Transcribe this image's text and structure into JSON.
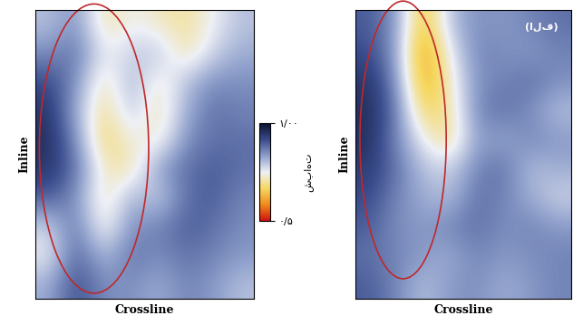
{
  "chart_data": [
    {
      "type": "heatmap",
      "x_label": "Crossline",
      "y_label": "Inline",
      "tick_labels": false,
      "cells": [
        [
          0.8,
          0.85,
          0.7,
          0.75,
          0.72,
          0.7,
          0.75,
          0.8
        ],
        [
          0.85,
          0.88,
          0.75,
          0.78,
          0.8,
          0.7,
          0.78,
          0.82
        ],
        [
          0.92,
          0.85,
          0.7,
          0.82,
          0.72,
          0.8,
          0.85,
          0.85
        ],
        [
          0.95,
          0.82,
          0.68,
          0.8,
          0.7,
          0.82,
          0.88,
          0.86
        ],
        [
          0.96,
          0.85,
          0.66,
          0.75,
          0.72,
          0.85,
          0.88,
          0.88
        ],
        [
          0.95,
          0.88,
          0.72,
          0.7,
          0.84,
          0.88,
          0.9,
          0.88
        ],
        [
          0.9,
          0.85,
          0.7,
          0.82,
          0.78,
          0.88,
          0.9,
          0.86
        ],
        [
          0.78,
          0.88,
          0.72,
          0.85,
          0.86,
          0.9,
          0.88,
          0.85
        ],
        [
          0.75,
          0.9,
          0.8,
          0.88,
          0.85,
          0.88,
          0.86,
          0.84
        ],
        [
          0.82,
          0.92,
          0.85,
          0.85,
          0.82,
          0.86,
          0.84,
          0.8
        ]
      ],
      "colorbar": {
        "label": "شباهت",
        "range": [
          0.5,
          1.0
        ],
        "ticks": [
          {
            "value": 1.0,
            "label": "۱/۰۰"
          },
          {
            "value": 0.5,
            "label": "۰/۵"
          }
        ]
      }
    },
    {
      "type": "heatmap",
      "x_label": "Crossline",
      "y_label": "Inline",
      "tick_labels": false,
      "annotations": [
        "(الف)"
      ],
      "cells": [
        [
          0.9,
          0.85,
          0.62,
          0.8,
          0.85,
          0.84,
          0.86,
          0.88
        ],
        [
          0.92,
          0.84,
          0.58,
          0.75,
          0.86,
          0.85,
          0.84,
          0.86
        ],
        [
          0.95,
          0.86,
          0.6,
          0.72,
          0.85,
          0.86,
          0.88,
          0.85
        ],
        [
          0.96,
          0.88,
          0.66,
          0.7,
          0.86,
          0.88,
          0.85,
          0.8
        ],
        [
          0.96,
          0.86,
          0.75,
          0.68,
          0.84,
          0.82,
          0.86,
          0.84
        ],
        [
          0.94,
          0.88,
          0.8,
          0.78,
          0.86,
          0.88,
          0.8,
          0.82
        ],
        [
          0.92,
          0.86,
          0.82,
          0.8,
          0.88,
          0.86,
          0.82,
          0.78
        ],
        [
          0.9,
          0.85,
          0.84,
          0.86,
          0.88,
          0.85,
          0.86,
          0.84
        ],
        [
          0.88,
          0.86,
          0.84,
          0.82,
          0.86,
          0.84,
          0.85,
          0.86
        ],
        [
          0.9,
          0.86,
          0.8,
          0.84,
          0.85,
          0.82,
          0.84,
          0.86
        ]
      ]
    }
  ]
}
